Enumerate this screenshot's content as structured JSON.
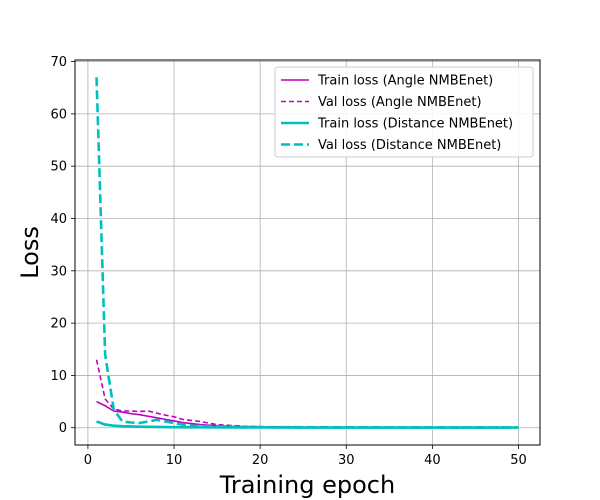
{
  "chart_data": {
    "type": "line",
    "title": "",
    "xlabel": "Training epoch",
    "ylabel": "Loss",
    "xlim": [
      -1.5,
      52.5
    ],
    "ylim": [
      -3.3,
      70.3
    ],
    "xticks": [
      0,
      10,
      20,
      30,
      40,
      50
    ],
    "yticks": [
      0,
      10,
      20,
      30,
      40,
      50,
      60,
      70
    ],
    "grid": true,
    "legend_position": "top-right",
    "series": [
      {
        "name": "Train loss (Angle NMBEnet)",
        "color": "#bf00bf",
        "line_style": "solid",
        "x": [
          1,
          2,
          3,
          4,
          5,
          6,
          7,
          8,
          9,
          10,
          11,
          12,
          13,
          14,
          15,
          16,
          17,
          18,
          19,
          20,
          22,
          24,
          26,
          28,
          30,
          35,
          40,
          45,
          50
        ],
        "y": [
          5.0,
          4.2,
          3.2,
          3.0,
          2.7,
          2.5,
          2.2,
          1.9,
          1.6,
          1.3,
          1.0,
          0.8,
          0.6,
          0.5,
          0.4,
          0.3,
          0.25,
          0.2,
          0.18,
          0.15,
          0.12,
          0.1,
          0.08,
          0.07,
          0.06,
          0.05,
          0.04,
          0.03,
          0.03
        ]
      },
      {
        "name": "Val loss (Angle NMBEnet)",
        "color": "#bf00bf",
        "line_style": "dashed",
        "x": [
          1,
          2,
          3,
          4,
          5,
          6,
          7,
          8,
          9,
          10,
          11,
          12,
          13,
          14,
          15,
          16,
          17,
          18,
          19,
          20,
          22,
          24,
          26,
          28,
          30,
          35,
          40,
          45,
          50
        ],
        "y": [
          13.0,
          5.5,
          3.6,
          3.2,
          3.2,
          3.1,
          3.2,
          2.8,
          2.4,
          2.1,
          1.6,
          1.4,
          1.2,
          0.9,
          0.6,
          0.5,
          0.4,
          0.3,
          0.25,
          0.2,
          0.15,
          0.12,
          0.1,
          0.09,
          0.08,
          0.06,
          0.05,
          0.04,
          0.04
        ]
      },
      {
        "name": "Train loss (Distance NMBEnet)",
        "color": "#00bfbf",
        "line_style": "solid",
        "x": [
          1,
          2,
          3,
          4,
          5,
          6,
          7,
          8,
          9,
          10,
          12,
          14,
          16,
          18,
          20,
          25,
          30,
          35,
          40,
          45,
          50
        ],
        "y": [
          1.2,
          0.6,
          0.4,
          0.3,
          0.25,
          0.2,
          0.18,
          0.15,
          0.12,
          0.1,
          0.08,
          0.07,
          0.06,
          0.05,
          0.05,
          0.04,
          0.04,
          0.03,
          0.03,
          0.03,
          0.03
        ]
      },
      {
        "name": "Val loss (Distance NMBEnet)",
        "color": "#00bfbf",
        "line_style": "dashed",
        "x": [
          1,
          2,
          3,
          4,
          5,
          6,
          7,
          8,
          9,
          10,
          11,
          12,
          14,
          16,
          18,
          20,
          25,
          30,
          35,
          40,
          45,
          50
        ],
        "y": [
          67.0,
          14.0,
          3.5,
          1.2,
          1.0,
          0.9,
          1.2,
          1.5,
          1.2,
          0.9,
          0.6,
          0.4,
          0.3,
          0.2,
          0.15,
          0.12,
          0.1,
          0.08,
          0.07,
          0.06,
          0.06,
          0.05
        ]
      }
    ]
  }
}
